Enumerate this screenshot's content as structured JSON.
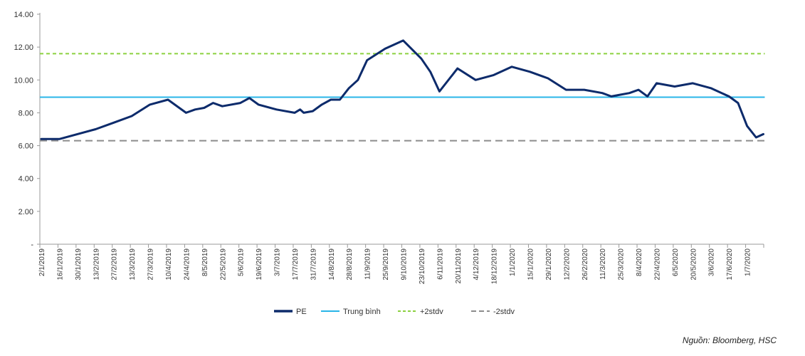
{
  "chart_data": {
    "type": "line",
    "ylim": [
      0,
      14
    ],
    "y_ticks": [
      {
        "value": 0,
        "label": "-"
      },
      {
        "value": 2,
        "label": "2.00"
      },
      {
        "value": 4,
        "label": "4.00"
      },
      {
        "value": 6,
        "label": "6.00"
      },
      {
        "value": 8,
        "label": "8.00"
      },
      {
        "value": 10,
        "label": "10.00"
      },
      {
        "value": 12,
        "label": "12.00"
      },
      {
        "value": 14,
        "label": "14.00"
      }
    ],
    "x_tick_labels": [
      "2/1/2019",
      "16/1/2019",
      "30/1/2019",
      "13/2/2019",
      "27/2/2019",
      "13/3/2019",
      "27/3/2019",
      "10/4/2019",
      "24/4/2019",
      "8/5/2019",
      "22/5/2019",
      "5/6/2019",
      "19/6/2019",
      "3/7/2019",
      "17/7/2019",
      "31/7/2019",
      "14/8/2019",
      "28/8/2019",
      "11/9/2019",
      "25/9/2019",
      "9/10/2019",
      "23/10/2019",
      "6/11/2019",
      "20/11/2019",
      "4/12/2019",
      "18/12/2019",
      "1/1/2020",
      "15/1/2020",
      "29/1/2020",
      "12/2/2020",
      "26/2/2020",
      "11/3/2020",
      "25/3/2020",
      "8/4/2020",
      "22/4/2020",
      "6/5/2020",
      "20/5/2020",
      "3/6/2020",
      "17/6/2020",
      "1/7/2020"
    ],
    "series": [
      {
        "name": "PE",
        "color": "#0d2b6b",
        "style": "solid",
        "x": [
          0,
          1,
          3,
          4,
          5,
          6,
          7,
          8,
          8.5,
          9,
          9.5,
          10,
          11,
          11.5,
          12,
          13,
          14,
          14.3,
          14.5,
          15,
          15.5,
          16,
          16.5,
          17,
          17.5,
          18,
          19,
          20,
          21,
          21.5,
          22,
          23,
          24,
          25,
          26,
          27,
          28,
          29,
          30,
          31,
          31.5,
          32,
          32.5,
          33,
          33.5,
          34,
          35,
          36,
          37,
          38,
          38.5,
          39,
          39.5,
          40
        ],
        "y": [
          6.4,
          6.4,
          7.0,
          7.4,
          7.8,
          8.5,
          8.8,
          8.0,
          8.2,
          8.3,
          8.6,
          8.4,
          8.6,
          8.9,
          8.5,
          8.2,
          8.0,
          8.2,
          8.0,
          8.1,
          8.5,
          8.8,
          8.8,
          9.5,
          10.0,
          11.2,
          11.9,
          12.4,
          11.3,
          10.5,
          9.3,
          10.7,
          10.0,
          10.3,
          10.8,
          10.5,
          10.1,
          9.4,
          9.4,
          9.2,
          9.0,
          9.1,
          9.2,
          9.4,
          9.0,
          9.8,
          9.6,
          9.8,
          9.5,
          9.0,
          8.6,
          7.2,
          6.5,
          6.7
        ]
      },
      {
        "name": "Trung bình",
        "color": "#29b5e8",
        "style": "solid",
        "y": [
          8.95,
          8.95
        ]
      },
      {
        "name": "+2stdv",
        "color": "#8cd140",
        "style": "dashed",
        "y": [
          11.6,
          11.6
        ]
      },
      {
        "name": "-2stdv",
        "color": "#8c8c8c",
        "style": "dashed",
        "y": [
          6.3,
          6.3
        ]
      }
    ],
    "legend_position": "bottom-center",
    "grid": false
  },
  "source_note": "Nguồn: Bloomberg, HSC"
}
